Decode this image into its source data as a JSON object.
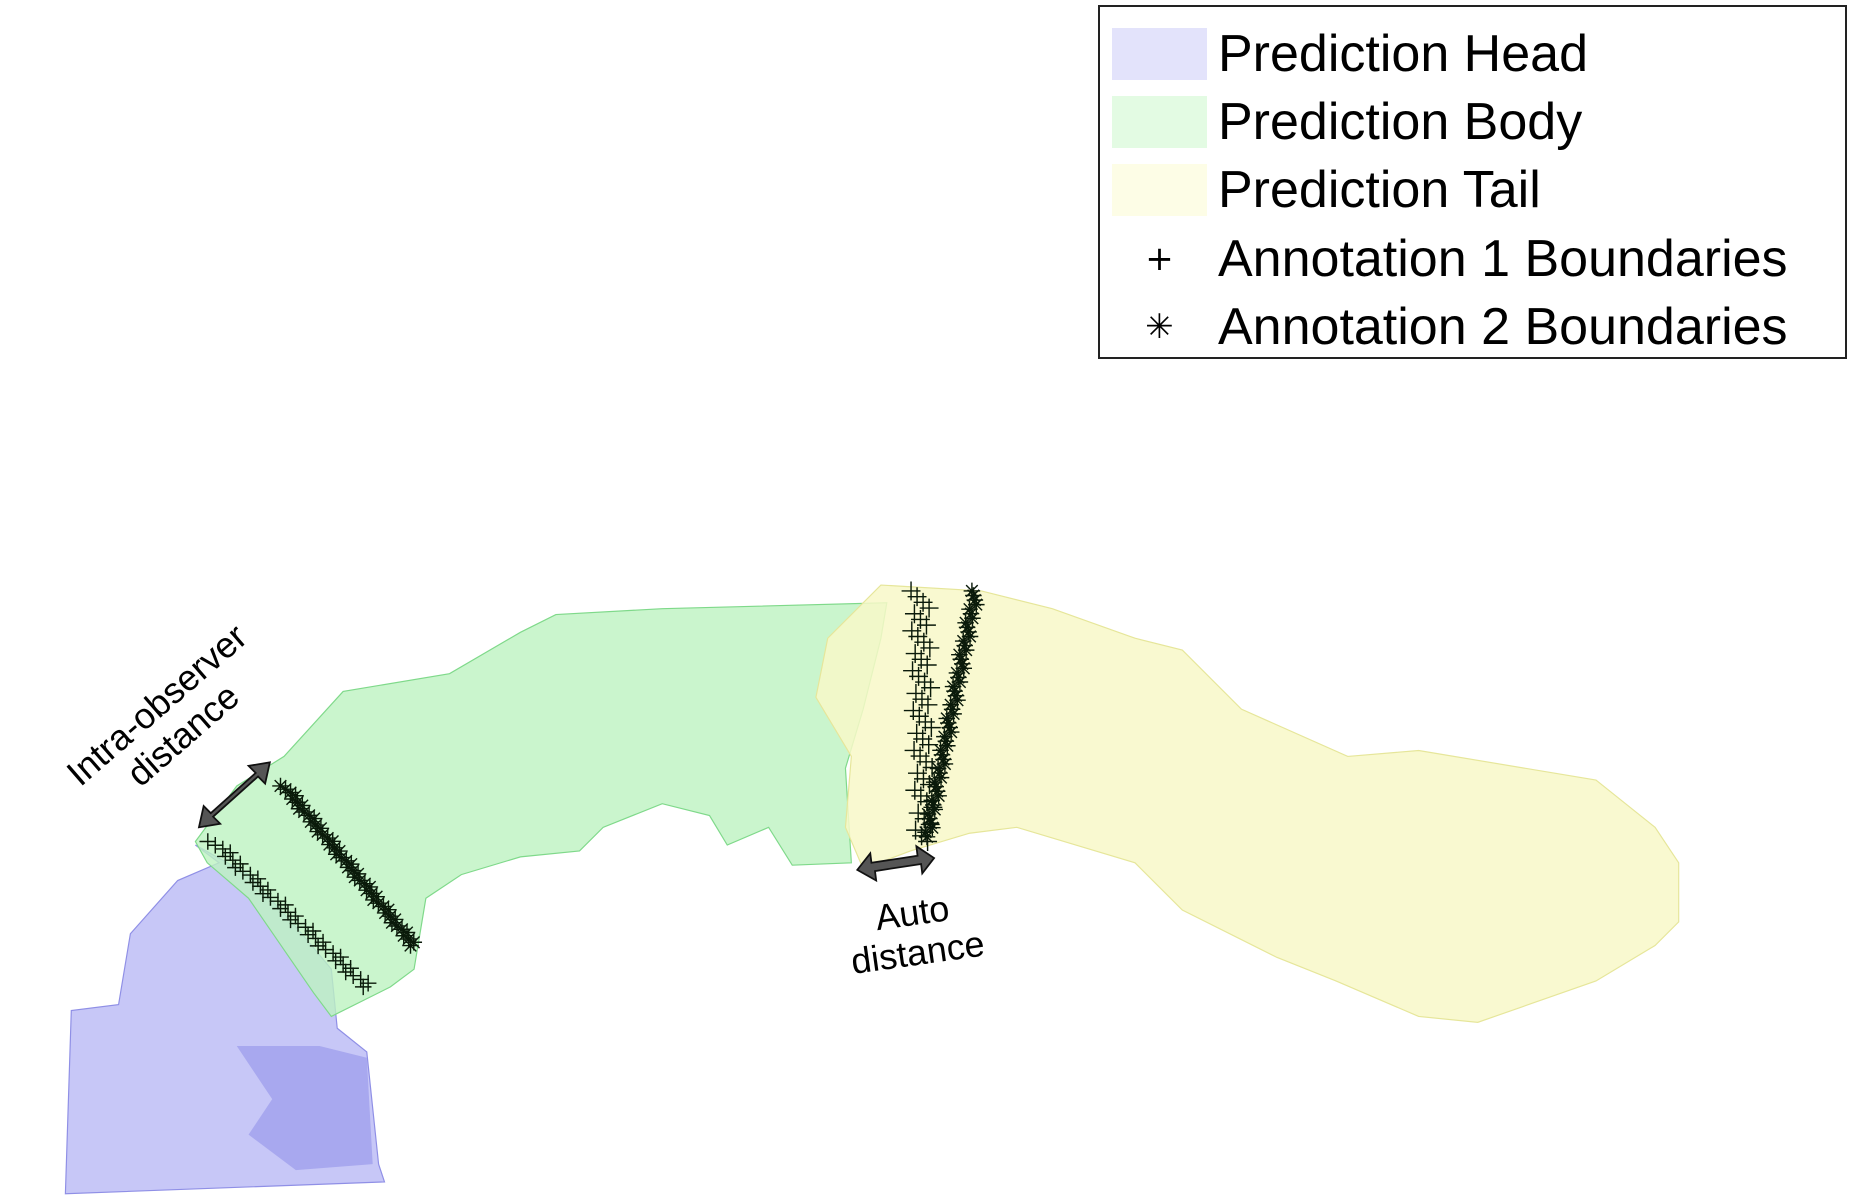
{
  "legend": {
    "items": [
      {
        "label": "Prediction Head",
        "kind": "swatch",
        "color": "#e3e3fb"
      },
      {
        "label": "Prediction Body",
        "kind": "swatch",
        "color": "#e3fbe3"
      },
      {
        "label": "Prediction Tail",
        "kind": "swatch",
        "color": "#fdfde6"
      },
      {
        "label": "Annotation 1 Boundaries",
        "kind": "marker",
        "symbol": "+"
      },
      {
        "label": "Annotation 2 Boundaries",
        "kind": "marker",
        "symbol": "✳"
      }
    ]
  },
  "annotations": {
    "intra_line1": "Intra-observer",
    "intra_line2": "distance",
    "auto_line1": "Auto",
    "auto_line2": "distance"
  },
  "colors": {
    "head": "#b9b9f5",
    "body": "#bdf3c0",
    "tail": "#f8f8c8",
    "arrow": "#555555"
  }
}
